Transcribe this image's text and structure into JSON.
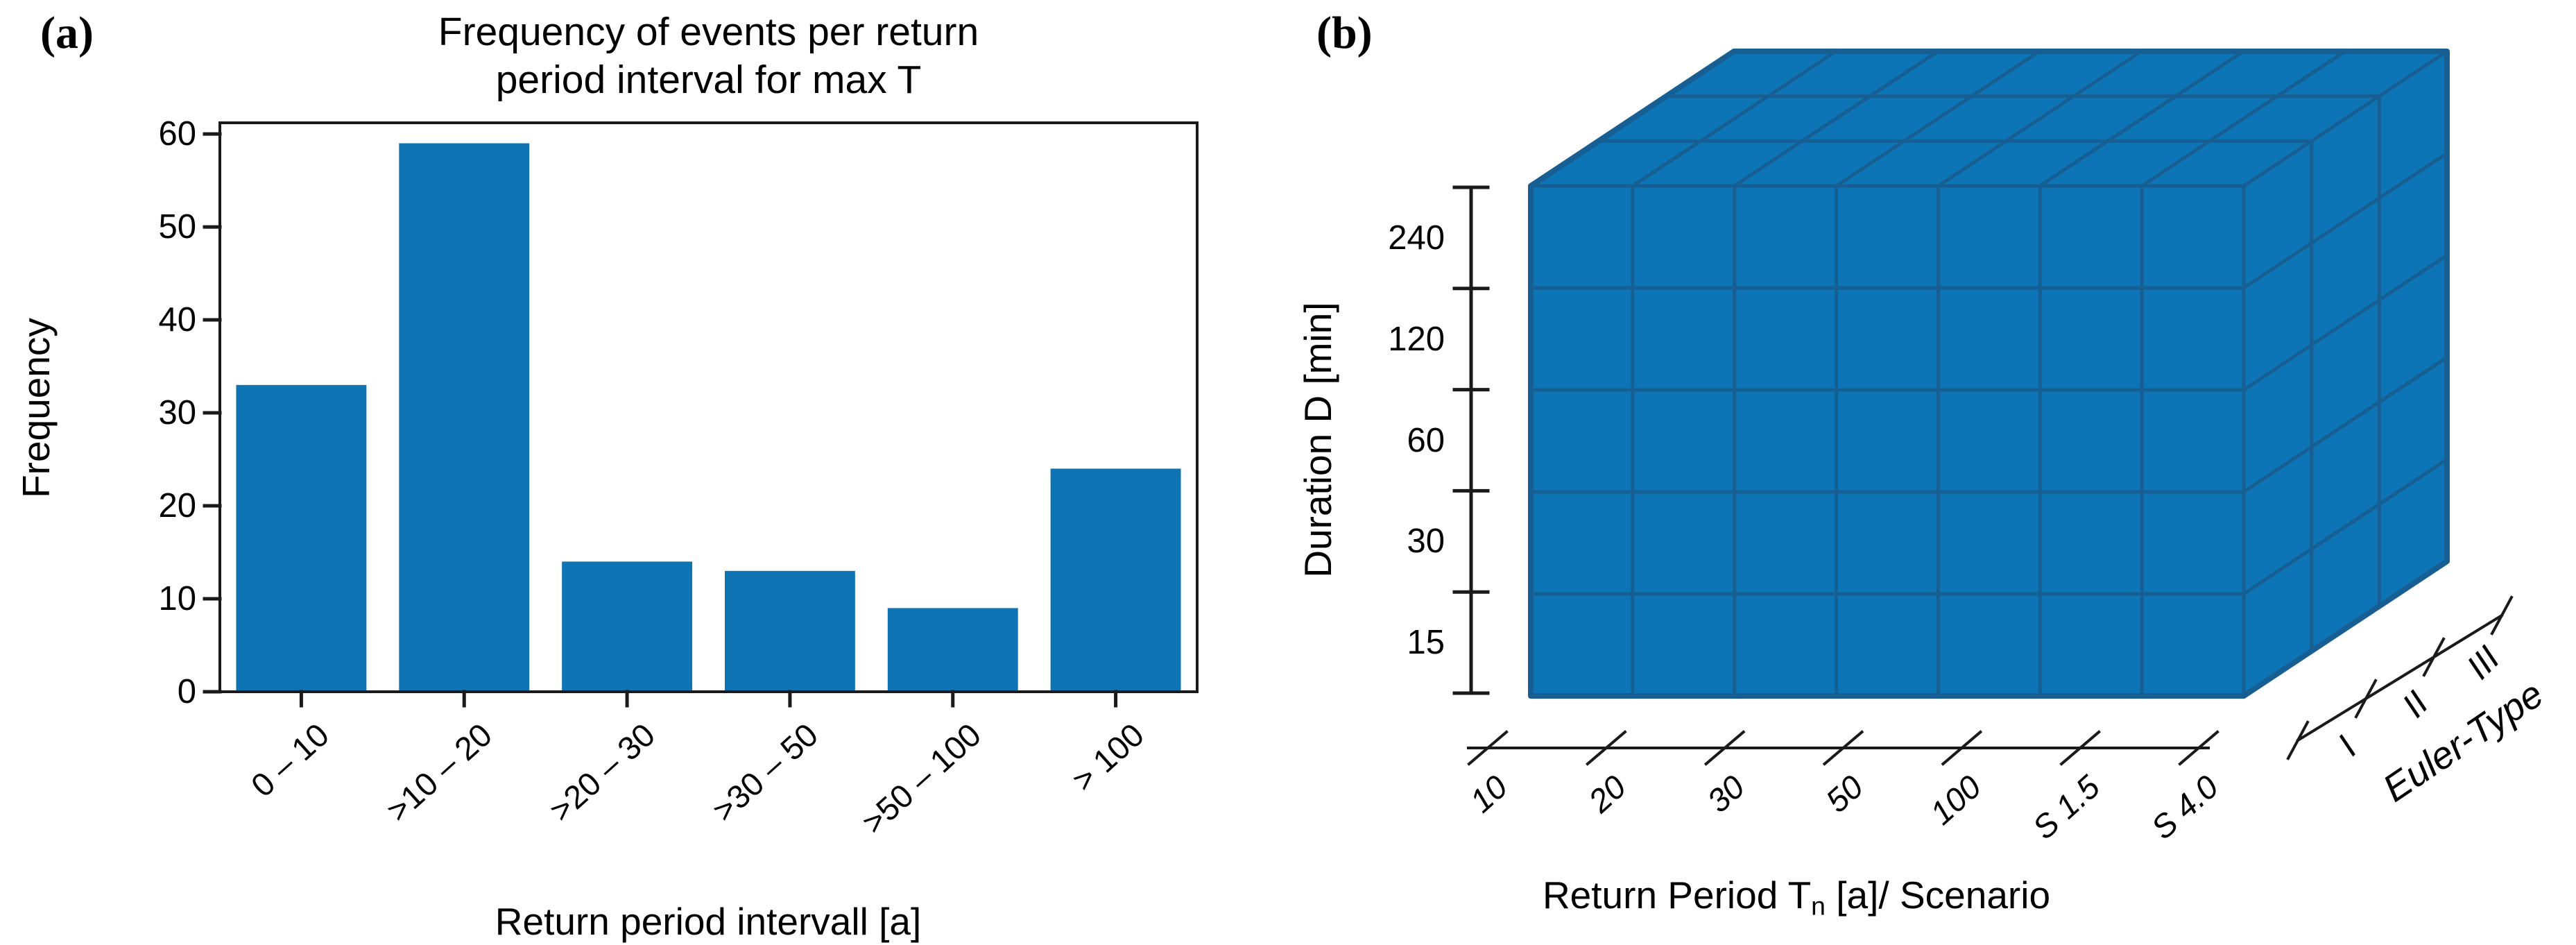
{
  "figure": {
    "background": "#ffffff",
    "bar_color": "#0e74b4",
    "cube_fill": "#0d75b5",
    "cube_edge": "#175f93",
    "axis_color": "#1a1a1a"
  },
  "panel_a": {
    "letter": "(a)",
    "title_line1": "Frequency of events per return",
    "title_line2": "period interval for max T",
    "xlabel": "Return period intervall [a]",
    "ylabel": "Frequency"
  },
  "panel_b": {
    "letter": "(b)",
    "ylabel": "Duration D [min]",
    "xlabel_pre": "Return Period T",
    "xlabel_sub": "n",
    "xlabel_post": " [a]/ Scenario",
    "zlabel": "Euler-Type"
  },
  "chart_data": [
    {
      "type": "bar",
      "panel": "a",
      "title": "Frequency of events per return\nperiod interval for max T",
      "categories": [
        "0 – 10",
        ">10 – 20",
        ">20 – 30",
        ">30 – 50",
        ">50 – 100",
        "> 100"
      ],
      "values": [
        33,
        59,
        14,
        13,
        9,
        24
      ],
      "xlabel": "Return period intervall [a]",
      "ylabel": "Frequency",
      "ylim": [
        0,
        61.2
      ],
      "yticks": [
        0,
        10,
        20,
        30,
        40,
        50,
        60
      ],
      "x_tick_rotation_deg": -42,
      "grid": false,
      "bar_color": "#0e74b4"
    },
    {
      "type": "heatmap",
      "panel": "b",
      "subtype": "3d-voxel-cube",
      "xlabel": "Return Period Tn [a]/ Scenario",
      "ylabel": "Duration D [min]",
      "zlabel": "Euler-Type",
      "x_ticks": [
        "10",
        "20",
        "30",
        "50",
        "100",
        "S 1.5",
        "S 4.0"
      ],
      "duration_labels_top_to_bottom": [
        "240",
        "120",
        "60",
        "30",
        "15"
      ],
      "z_ticks": [
        "I",
        "II",
        "III"
      ],
      "cells": {
        "cols": 7,
        "rows": 5,
        "depth": 3
      },
      "cube_fill": "#0d75b5",
      "cube_edge": "#175f93"
    }
  ]
}
